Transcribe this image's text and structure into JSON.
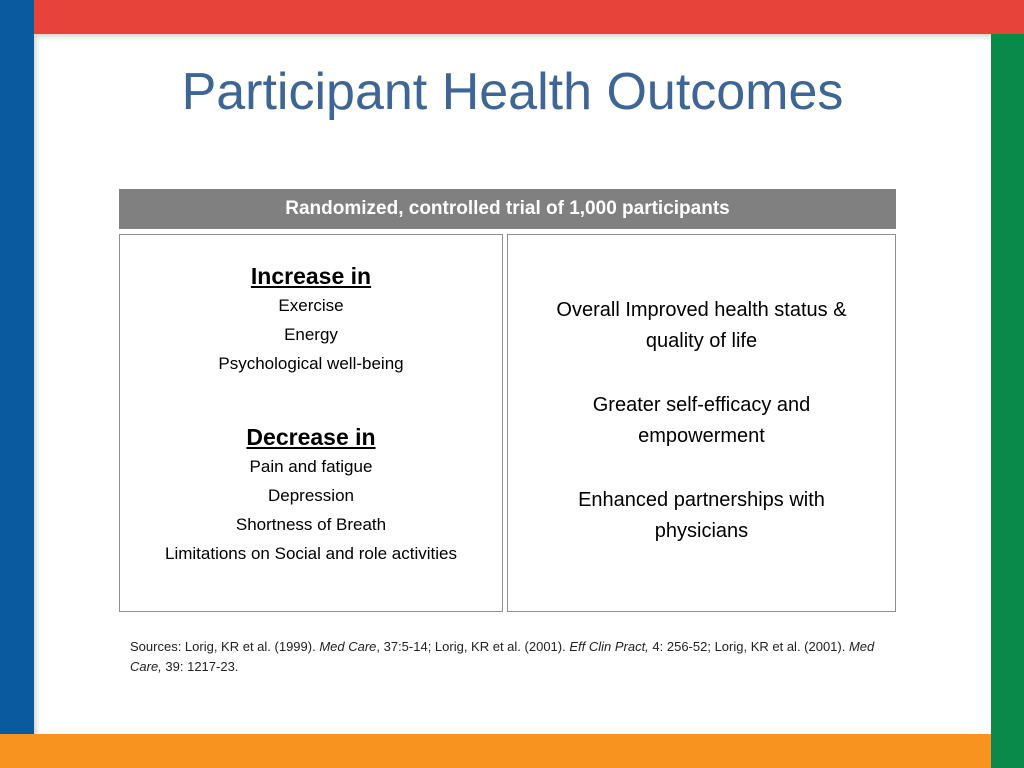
{
  "colors": {
    "top_bar": "#e8433a",
    "left_bar": "#0a5aa0",
    "right_bar": "#0a8a4a",
    "bottom_bar": "#f7931e",
    "title": "#3d6595",
    "header_bar": "#808080"
  },
  "slide": {
    "title": "Participant Health Outcomes",
    "header": "Randomized, controlled trial of 1,000 participants",
    "left_box": {
      "increase_heading": "Increase in",
      "increase_items": [
        "Exercise",
        "Energy",
        "Psychological well-being"
      ],
      "decrease_heading": "Decrease in",
      "decrease_items": [
        "Pain and fatigue",
        "Depression",
        "Shortness of Breath",
        "Limitations on Social and role activities"
      ]
    },
    "right_box": {
      "items": [
        "Overall Improved health status & quality of life",
        "Greater self-efficacy and empowerment",
        "Enhanced partnerships with physicians"
      ]
    },
    "sources": {
      "prefix": "Sources: Lorig, KR et al. (1999). ",
      "journal1": "Med Care",
      "part1": ", 37:5-14; Lorig, KR et al. (2001). ",
      "journal2": "Eff Clin Pract,",
      "part2": " 4: 256-52; Lorig, KR et al.  (2001). ",
      "journal3": "Med Care,",
      "part3": " 39: 1217-23."
    }
  }
}
